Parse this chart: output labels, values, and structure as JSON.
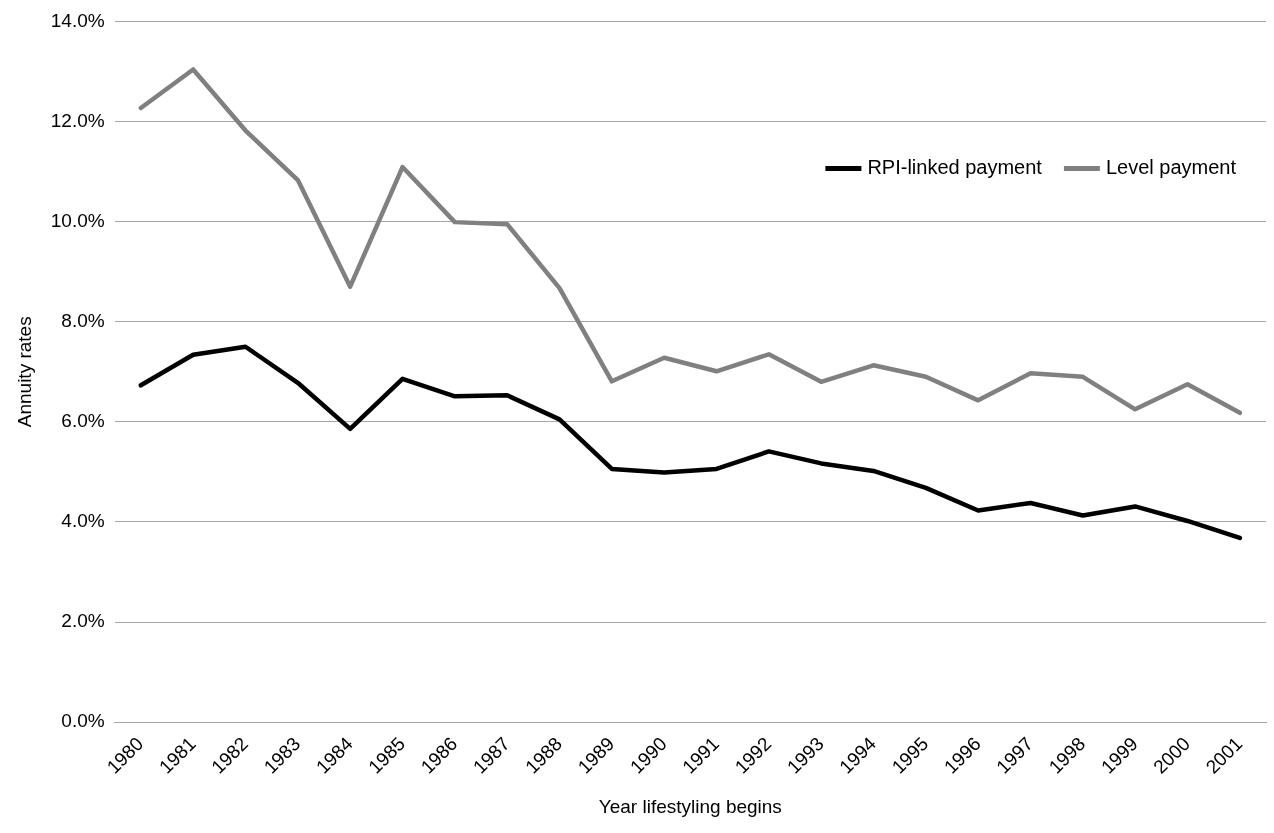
{
  "chart_data": {
    "type": "line",
    "xlabel": "Year lifestyling begins",
    "ylabel": "Annuity rates",
    "categories": [
      "1980",
      "1981",
      "1982",
      "1983",
      "1984",
      "1985",
      "1986",
      "1987",
      "1988",
      "1989",
      "1990",
      "1991",
      "1992",
      "1993",
      "1994",
      "1995",
      "1996",
      "1997",
      "1998",
      "1999",
      "2000",
      "2001"
    ],
    "series": [
      {
        "name": "RPI-linked payment",
        "color": "#000000",
        "values": [
          6.73,
          7.34,
          7.5,
          6.78,
          5.86,
          6.86,
          6.51,
          6.53,
          6.05,
          5.06,
          4.99,
          5.06,
          5.41,
          5.17,
          5.02,
          4.68,
          4.23,
          4.38,
          4.13,
          4.31,
          4.02,
          3.68
        ]
      },
      {
        "name": "Level payment",
        "color": "#808080",
        "values": [
          12.27,
          13.04,
          11.82,
          10.83,
          8.7,
          11.09,
          9.99,
          9.95,
          8.67,
          6.81,
          7.28,
          7.01,
          7.35,
          6.8,
          7.13,
          6.9,
          6.43,
          6.97,
          6.9,
          6.25,
          6.75,
          6.18
        ]
      }
    ],
    "ylim": [
      0,
      14
    ],
    "yticks": [
      {
        "value": 0,
        "label": "0.0%"
      },
      {
        "value": 2,
        "label": "2.0%"
      },
      {
        "value": 4,
        "label": "4.0%"
      },
      {
        "value": 6,
        "label": "6.0%"
      },
      {
        "value": 8,
        "label": "8.0%"
      },
      {
        "value": 10,
        "label": "10.0%"
      },
      {
        "value": 12,
        "label": "12.0%"
      },
      {
        "value": 14,
        "label": "14.0%"
      }
    ],
    "grid": "y",
    "legend": "top right",
    "marker": "none",
    "line_style": "solid"
  }
}
